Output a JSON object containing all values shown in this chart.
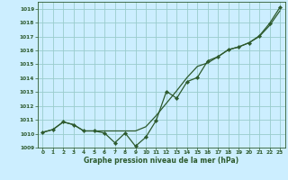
{
  "xlabel": "Graphe pression niveau de la mer (hPa)",
  "background_color": "#cceeff",
  "grid_color": "#99cccc",
  "line_color": "#2d5a2d",
  "xlim": [
    -0.5,
    23.5
  ],
  "ylim": [
    1009,
    1019.5
  ],
  "yticks": [
    1009,
    1010,
    1011,
    1012,
    1013,
    1014,
    1015,
    1016,
    1017,
    1018,
    1019
  ],
  "xticks": [
    0,
    1,
    2,
    3,
    4,
    5,
    6,
    7,
    8,
    9,
    10,
    11,
    12,
    13,
    14,
    15,
    16,
    17,
    18,
    19,
    20,
    21,
    22,
    23
  ],
  "series1_x": [
    0,
    1,
    2,
    3,
    4,
    5,
    6,
    7,
    8,
    9,
    10,
    11,
    12,
    13,
    14,
    15,
    16,
    17,
    18,
    19,
    20,
    21,
    22,
    23
  ],
  "series1_y": [
    1010.1,
    1010.3,
    1010.85,
    1010.65,
    1010.2,
    1010.2,
    1010.05,
    1009.35,
    1010.05,
    1009.1,
    1009.75,
    1010.95,
    1013.05,
    1012.55,
    1013.75,
    1014.05,
    1015.25,
    1015.55,
    1016.05,
    1016.25,
    1016.55,
    1017.05,
    1017.95,
    1019.1
  ],
  "series2_x": [
    0,
    1,
    2,
    3,
    4,
    5,
    6,
    7,
    8,
    9,
    10,
    11,
    12,
    13,
    14,
    15,
    16,
    17,
    18,
    19,
    20,
    21,
    22,
    23
  ],
  "series2_y": [
    1010.1,
    1010.3,
    1010.85,
    1010.65,
    1010.2,
    1010.2,
    1010.2,
    1010.2,
    1010.2,
    1010.2,
    1010.5,
    1011.3,
    1012.2,
    1013.1,
    1014.05,
    1014.85,
    1015.1,
    1015.55,
    1016.05,
    1016.25,
    1016.55,
    1017.0,
    1017.8,
    1018.85
  ]
}
